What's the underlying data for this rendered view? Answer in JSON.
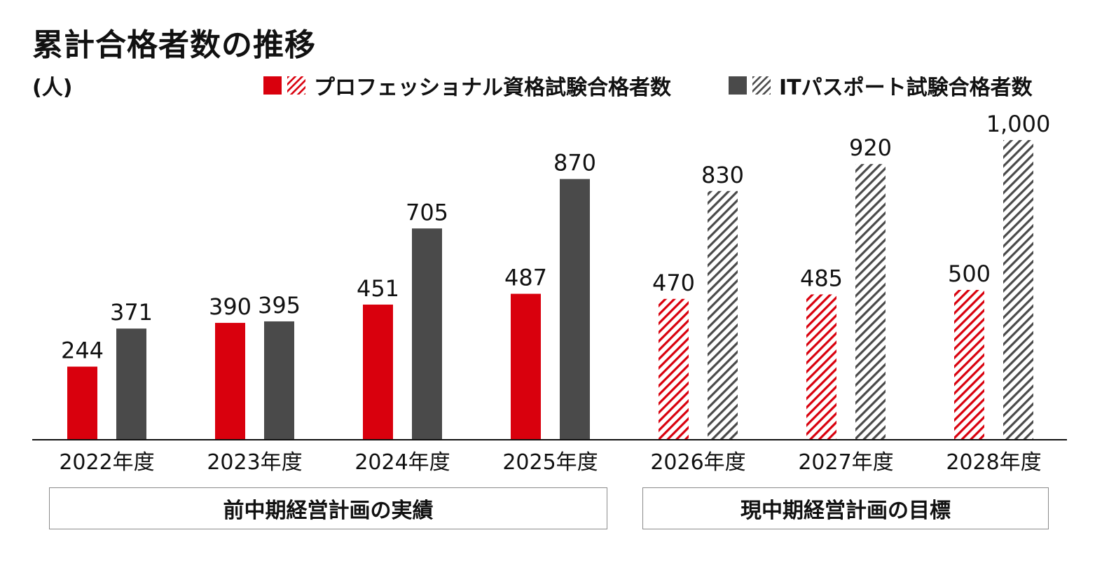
{
  "title": "累計合格者数の推移",
  "unit": "(人)",
  "colors": {
    "pro": "#d9000d",
    "it": "#4a4a4a"
  },
  "legend": {
    "pro": "プロフェッショナル資格試験合格者数",
    "it": "ITパスポート試験合格者数"
  },
  "periods": [
    {
      "label": "前中期経営計画の実績"
    },
    {
      "label": "現中期経営計画の目標"
    }
  ],
  "chart_data": {
    "type": "bar",
    "categories": [
      "2022年度",
      "2023年度",
      "2024年度",
      "2025年度",
      "2026年度",
      "2027年度",
      "2028年度"
    ],
    "series": [
      {
        "name": "プロフェッショナル資格試験合格者数",
        "values": [
          244,
          390,
          451,
          487,
          470,
          485,
          500
        ],
        "labels": [
          "244",
          "390",
          "451",
          "487",
          "470",
          "485",
          "500"
        ]
      },
      {
        "name": "ITパスポート試験合格者数",
        "values": [
          371,
          395,
          705,
          870,
          830,
          920,
          1000
        ],
        "labels": [
          "371",
          "395",
          "705",
          "870",
          "830",
          "920",
          "1,000"
        ]
      }
    ],
    "hatched_categories": [
      "2026年度",
      "2027年度",
      "2028年度"
    ],
    "ylim": [
      0,
      1000
    ],
    "grid": false,
    "legend_position": "top-right"
  }
}
